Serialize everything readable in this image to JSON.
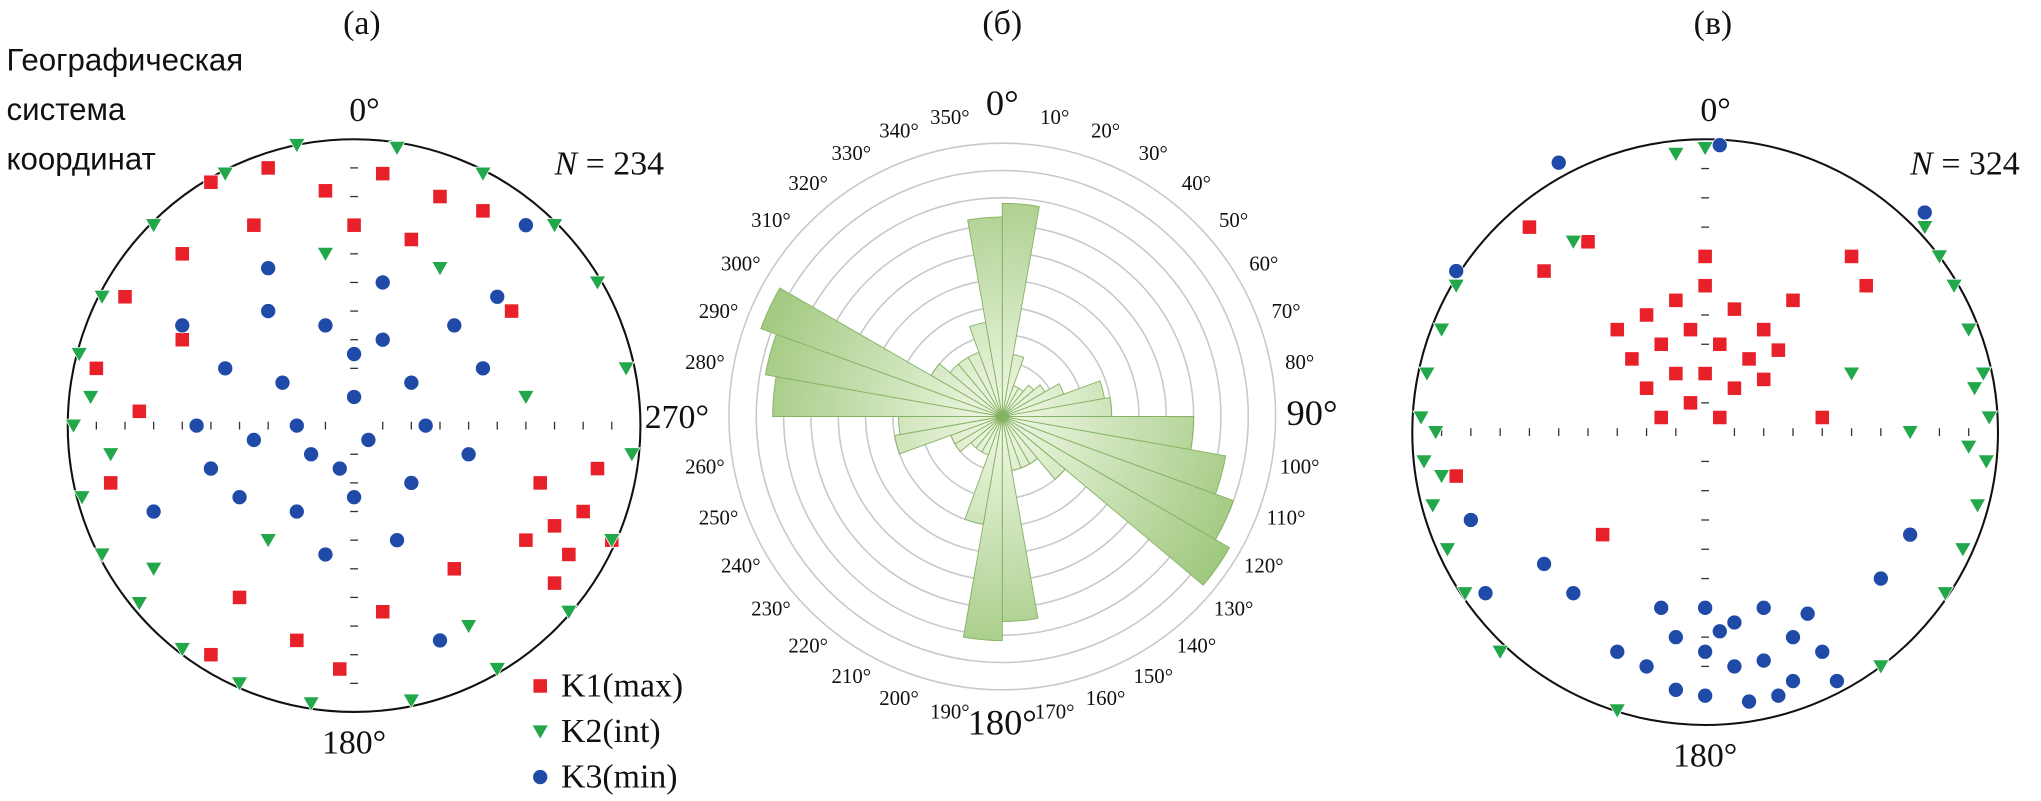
{
  "chart_data": [
    {
      "type": "scatter",
      "title": "(а)",
      "note": [
        "Географическая",
        "система",
        "координат"
      ],
      "north_label": "0°",
      "east_label": "270°",
      "south_label": "180°",
      "n_symbol": "N",
      "n_text": "= 234",
      "xlim": [
        -1,
        1
      ],
      "ylim": [
        -1,
        1
      ],
      "legend": "lower right",
      "series": [
        {
          "name": "K1(max)",
          "color": "#e8202a",
          "marker": "square",
          "x": [
            -0.5,
            -0.3,
            -0.1,
            0.1,
            0.3,
            0.45,
            -0.35,
            0,
            0.2,
            -0.6,
            -0.8,
            -0.9,
            -0.75,
            -0.85,
            -0.6,
            0.55,
            0.65,
            0.7,
            0.8,
            0.75,
            0.85,
            0.6,
            0.9,
            0.7,
            -0.4,
            -0.2,
            -0.5,
            -0.05,
            0.1,
            0.35
          ],
          "y": [
            0.85,
            0.9,
            0.82,
            0.88,
            0.8,
            0.75,
            0.7,
            0.7,
            0.65,
            0.6,
            0.45,
            0.2,
            0.05,
            -0.2,
            0.3,
            0.4,
            -0.2,
            -0.35,
            -0.3,
            -0.45,
            -0.15,
            -0.4,
            -0.4,
            -0.55,
            -0.6,
            -0.75,
            -0.8,
            -0.85,
            -0.65,
            -0.5
          ]
        },
        {
          "name": "K2(int)",
          "color": "#22a84a",
          "marker": "triangle",
          "x": [
            -0.2,
            0.15,
            0.45,
            0.7,
            0.85,
            0.95,
            0.97,
            0.9,
            0.75,
            0.5,
            0.2,
            -0.15,
            -0.4,
            -0.6,
            -0.75,
            -0.88,
            -0.95,
            -0.98,
            -0.96,
            -0.88,
            -0.7,
            -0.45,
            -0.92,
            -0.85,
            -0.7,
            0.3,
            -0.1,
            0.6,
            0.4,
            -0.3
          ],
          "y": [
            0.98,
            0.97,
            0.88,
            0.7,
            0.5,
            0.2,
            -0.1,
            -0.4,
            -0.65,
            -0.85,
            -0.96,
            -0.97,
            -0.9,
            -0.78,
            -0.62,
            -0.45,
            -0.25,
            0,
            0.25,
            0.45,
            0.7,
            0.88,
            0.1,
            -0.1,
            -0.5,
            0.55,
            0.6,
            0.1,
            -0.7,
            -0.4
          ]
        },
        {
          "name": "K3(min)",
          "color": "#1f4aa8",
          "marker": "circle",
          "x": [
            -0.3,
            -0.1,
            0.1,
            -0.45,
            -0.25,
            0,
            0.2,
            -0.55,
            -0.35,
            -0.15,
            0.05,
            0.25,
            -0.4,
            -0.2,
            0,
            0.2,
            -0.6,
            0.35,
            -0.5,
            0.4,
            -0.3,
            0.1,
            -0.1,
            0.15,
            0.5,
            0.6,
            -0.7,
            0.3,
            -0.2,
            0,
            -0.05,
            0.45
          ],
          "y": [
            0.4,
            0.35,
            0.3,
            0.2,
            0.15,
            0.1,
            0.15,
            0,
            -0.05,
            -0.1,
            -0.05,
            0,
            -0.25,
            -0.3,
            -0.25,
            -0.2,
            0.35,
            0.35,
            -0.15,
            -0.1,
            0.55,
            0.5,
            -0.45,
            -0.4,
            0.45,
            0.7,
            -0.3,
            -0.75,
            0,
            0.25,
            -0.15,
            0.2
          ]
        }
      ]
    },
    {
      "type": "rose",
      "title": "(б)",
      "categories": [
        "0°",
        "10°",
        "20°",
        "30°",
        "40°",
        "50°",
        "60°",
        "70°",
        "80°",
        "90°",
        "100°",
        "110°",
        "120°",
        "130°",
        "140°",
        "150°",
        "160°",
        "170°",
        "180°",
        "190°",
        "200°",
        "210°",
        "220°",
        "230°",
        "240°",
        "250°",
        "260°",
        null,
        "280°",
        "290°",
        "300°",
        "310°",
        "320°",
        "330°",
        "340°",
        "350°"
      ],
      "values": [
        7.8,
        2.3,
        1.2,
        1.2,
        1.5,
        1.8,
        2.4,
        3.8,
        4.0,
        7.0,
        8.3,
        9.0,
        9.6,
        3.0,
        2.0,
        2.0,
        2.0,
        7.5,
        8.2,
        4.0,
        1.5,
        1.5,
        1.5,
        2.0,
        2.0,
        4.0,
        3.8,
        8.4,
        8.8,
        9.4,
        3.0,
        2.5,
        2.5,
        2.5,
        3.5,
        7.3
      ],
      "color": "#9cc67a",
      "rlim": [
        0,
        10
      ],
      "rticks": [
        1,
        2,
        3,
        4,
        5,
        6,
        7,
        8,
        9,
        10
      ],
      "grid": true
    },
    {
      "type": "scatter",
      "title": "(в)",
      "north_label": "0°",
      "south_label": "180°",
      "n_symbol": "N",
      "n_text": "= 324",
      "xlim": [
        -1,
        1
      ],
      "ylim": [
        -1,
        1
      ],
      "series": [
        {
          "color": "#e8202a",
          "marker": "square",
          "x": [
            -0.2,
            -0.1,
            0,
            0.1,
            0.2,
            -0.25,
            -0.15,
            -0.05,
            0.05,
            0.15,
            -0.2,
            -0.1,
            0,
            0.1,
            0.2,
            -0.05,
            0.05,
            -0.15,
            0.25,
            -0.3,
            0,
            0.3,
            -0.6,
            -0.55,
            -0.4,
            0.5,
            0.55,
            0.4,
            -0.35,
            -0.85
          ],
          "y": [
            0.4,
            0.45,
            0.5,
            0.42,
            0.35,
            0.25,
            0.3,
            0.35,
            0.3,
            0.25,
            0.15,
            0.2,
            0.2,
            0.15,
            0.18,
            0.1,
            0.05,
            0.05,
            0.28,
            0.35,
            0.6,
            0.45,
            0.7,
            0.55,
            0.65,
            0.6,
            0.5,
            0.05,
            -0.35,
            -0.15
          ]
        },
        {
          "color": "#22a84a",
          "marker": "triangle",
          "x": [
            -0.95,
            -0.97,
            -0.96,
            -0.93,
            -0.9,
            -0.88,
            -0.82,
            -0.85,
            -0.92,
            -0.9,
            0.95,
            0.97,
            0.96,
            0.93,
            0.9,
            0.88,
            0.82,
            0.85,
            0.92,
            0.9,
            0.8,
            0.75,
            0,
            -0.1,
            0.5,
            -0.45,
            -0.7,
            0.6,
            -0.3,
            0.7
          ],
          "y": [
            0.2,
            0.05,
            -0.1,
            -0.25,
            0.35,
            -0.4,
            -0.55,
            0.5,
            0,
            -0.15,
            0.2,
            0.05,
            -0.1,
            -0.25,
            0.35,
            -0.4,
            -0.55,
            0.5,
            0.15,
            -0.05,
            0.6,
            0.7,
            0.97,
            0.95,
            0.2,
            0.65,
            -0.75,
            -0.8,
            -0.95,
            0
          ]
        },
        {
          "color": "#1f4aa8",
          "marker": "circle",
          "x": [
            0,
            0.1,
            0.2,
            0.3,
            -0.1,
            0,
            0.1,
            0.2,
            0.3,
            0.4,
            -0.2,
            -0.1,
            0,
            0.15,
            0.25,
            0.45,
            -0.3,
            0.05,
            0.35,
            -0.15,
            -0.45,
            -0.55,
            -0.75,
            -0.8,
            0.6,
            0.7,
            0.75,
            -0.5,
            0.05,
            -0.85
          ],
          "y": [
            -0.6,
            -0.65,
            -0.6,
            -0.7,
            -0.7,
            -0.75,
            -0.8,
            -0.78,
            -0.85,
            -0.75,
            -0.8,
            -0.88,
            -0.9,
            -0.92,
            -0.9,
            -0.85,
            -0.75,
            -0.68,
            -0.62,
            -0.6,
            -0.55,
            -0.45,
            -0.55,
            -0.3,
            -0.5,
            -0.35,
            0.75,
            0.92,
            0.98,
            0.55
          ]
        }
      ]
    }
  ]
}
